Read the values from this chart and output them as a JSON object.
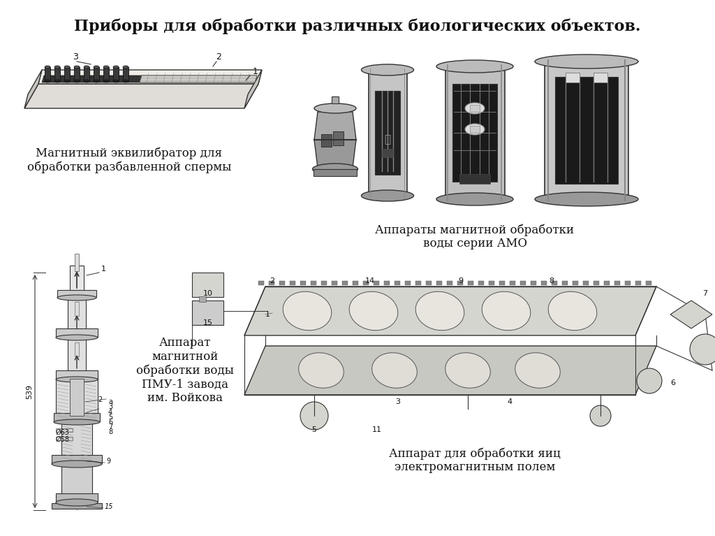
{
  "title": "Приборы для обработки различных биологических объектов.",
  "bg_color": "#ffffff",
  "title_fontsize": 16,
  "title_bold": true,
  "label_equilibrator": "Магнитный эквилибратор для\nобработки разбавленной спермы",
  "label_amo": "Аппараты магнитной обработки\nводы серии АМО",
  "label_pmu": "Аппарат\nмагнитной\nобработки воды\nПМУ-1 завода\nим. Войкова",
  "label_egg": "Аппарат для обработки яиц\nэлектромагнитным полем",
  "gray_dark": "#2a2a2a",
  "gray_mid": "#666666",
  "gray_light": "#aaaaaa",
  "gray_very_light": "#cccccc",
  "gray_bg": "#dddddd",
  "gray_fill": "#e8e8e8",
  "black": "#111111",
  "white": "#ffffff"
}
